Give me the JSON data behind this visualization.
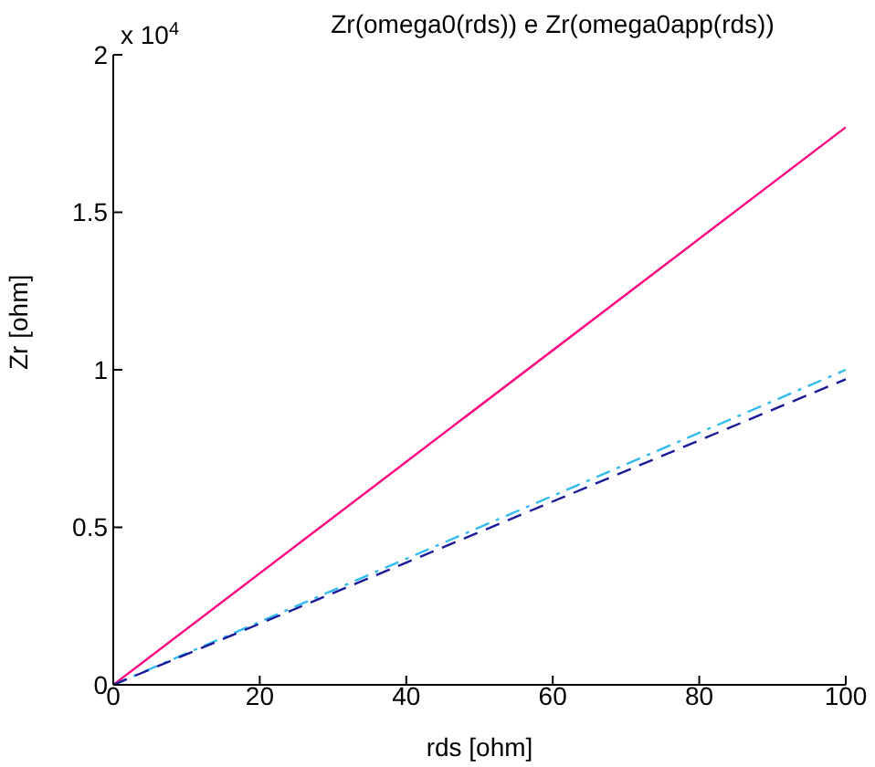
{
  "chart_data": {
    "type": "line",
    "title": "Zr(omega0(rds)) e Zr(omega0app(rds))",
    "xlabel": "rds [ohm]",
    "ylabel": "Zr [ohm]",
    "annotations": [
      "x 10$^{4}$"
    ],
    "x": [
      0,
      100
    ],
    "series": [
      {
        "color": "#ff0080",
        "values": [
          0,
          1.77
        ],
        "line_style": "solid"
      },
      {
        "color": "#33bbee",
        "values": [
          0,
          1.0
        ],
        "line_style": "dashdot"
      },
      {
        "color": "#1a1a99",
        "values": [
          0,
          0.97
        ],
        "line_style": "dashed"
      }
    ],
    "xlim": [
      0,
      100
    ],
    "xticks": [
      0,
      20,
      40,
      60,
      80,
      100
    ],
    "ylim": [
      0,
      2
    ],
    "yticks": [
      0,
      0.5,
      1,
      1.5,
      2
    ],
    "grid": false,
    "legend": false,
    "marker": "none"
  }
}
